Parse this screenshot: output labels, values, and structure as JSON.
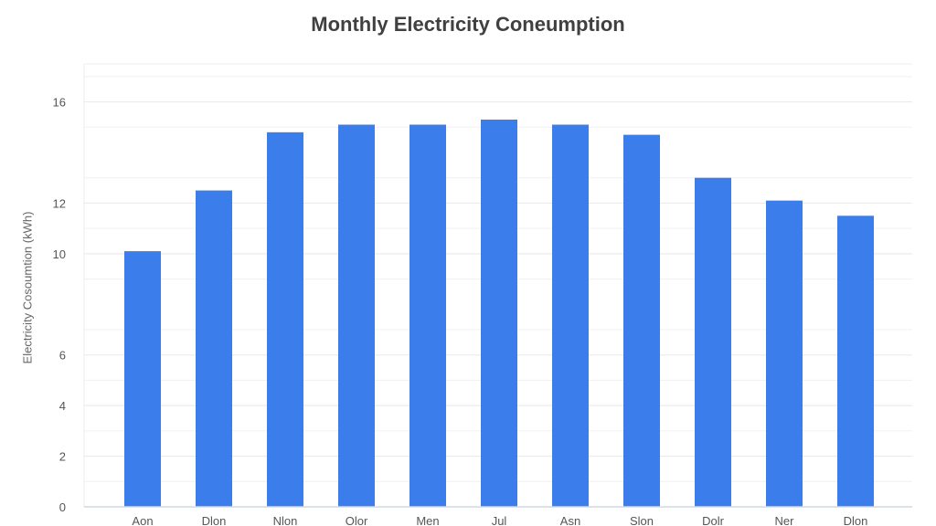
{
  "chart_data": {
    "type": "bar",
    "title": "Monthly Electricity Coneumption",
    "xlabel": "",
    "ylabel": "Electricity Cosoumtion (kWh)",
    "categories": [
      "Aon",
      "Dlon",
      "Nlon",
      "Olor",
      "Men",
      "Jul",
      "Asn",
      "Slon",
      "Dolr",
      "Ner",
      "Dlon"
    ],
    "values": [
      10.1,
      12.5,
      14.8,
      15.1,
      15.1,
      15.3,
      15.1,
      14.7,
      13.0,
      12.1,
      11.5
    ],
    "y_ticks": [
      0,
      2,
      4,
      6,
      10,
      12,
      16
    ],
    "y_tick_labels": [
      "0",
      "2",
      "4",
      "6",
      "10",
      "12",
      "16"
    ],
    "ylim": [
      0,
      17.5
    ],
    "grid": true,
    "legend": "none",
    "bar_color": "#3b7deb"
  }
}
